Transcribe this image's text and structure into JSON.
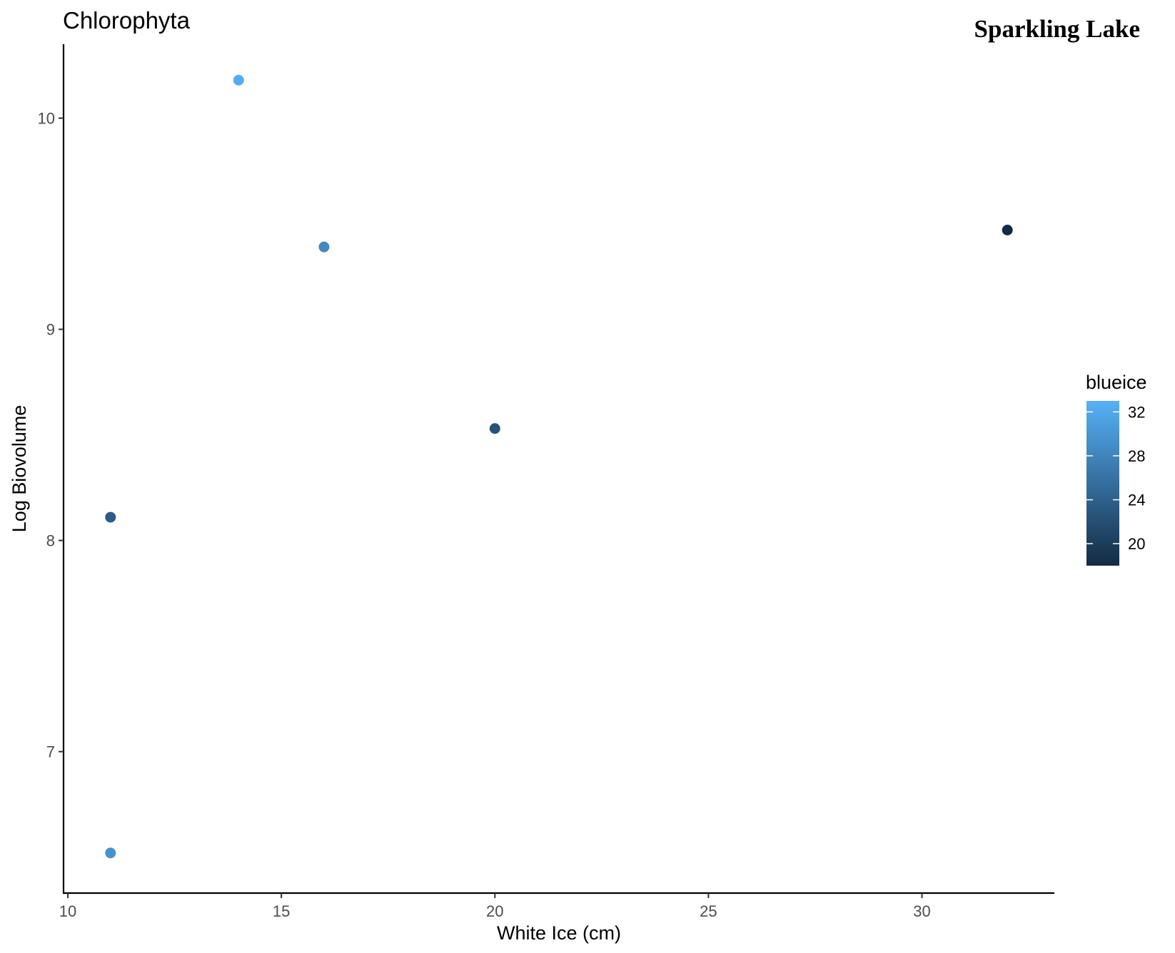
{
  "figure": {
    "title": "Chlorophyta",
    "site_label": "Sparkling Lake"
  },
  "chart_data": {
    "type": "scatter",
    "title": "Chlorophyta",
    "xlabel": "White Ice (cm)",
    "ylabel": "Log Biovolume",
    "xlim": [
      9.9,
      33.1
    ],
    "ylim": [
      6.33,
      10.35
    ],
    "x_ticks": [
      10,
      15,
      20,
      25,
      30
    ],
    "y_ticks": [
      7,
      8,
      9,
      10
    ],
    "grid": false,
    "points": [
      {
        "x": 11,
        "y": 8.11,
        "blueice": 23.5
      },
      {
        "x": 11,
        "y": 6.52,
        "blueice": 29.5
      },
      {
        "x": 14,
        "y": 10.18,
        "blueice": 32.5
      },
      {
        "x": 16,
        "y": 9.39,
        "blueice": 28.5
      },
      {
        "x": 20,
        "y": 8.53,
        "blueice": 22.5
      },
      {
        "x": 32,
        "y": 9.47,
        "blueice": 18.0
      }
    ],
    "color_scale": {
      "name": "blueice",
      "low": 18,
      "high": 33,
      "low_color": "#132b43",
      "high_color": "#56b1f7",
      "ticks": [
        20,
        24,
        28,
        32
      ],
      "legend_position": "right"
    }
  }
}
